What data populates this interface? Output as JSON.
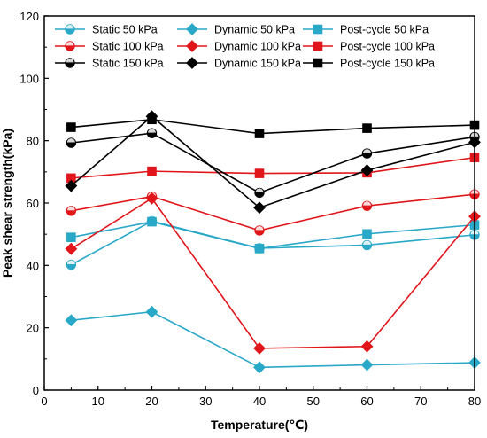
{
  "chart_data": {
    "type": "line",
    "title": "",
    "xlabel": "Temperature(℃)",
    "ylabel": "Peak shear strength(kPa)",
    "xlim": [
      0,
      80
    ],
    "ylim": [
      0,
      120
    ],
    "xticks": [
      0,
      10,
      20,
      30,
      40,
      50,
      60,
      70,
      80
    ],
    "yticks": [
      0,
      20,
      40,
      60,
      80,
      100,
      120
    ],
    "grid": false,
    "legend_position": "top",
    "legend_columns": 3,
    "x": [
      5,
      20,
      40,
      60,
      80
    ],
    "series": [
      {
        "name": "Static 50 kPa",
        "color": "#29a8c8",
        "marker": "circle",
        "values": [
          40.2,
          54.2,
          45.5,
          46.5,
          49.8
        ]
      },
      {
        "name": "Dynamic 50 kPa",
        "color": "#29a8c8",
        "marker": "diamond",
        "values": [
          22.4,
          25.1,
          7.3,
          8.1,
          8.8
        ]
      },
      {
        "name": "Post-cycle 50 kPa",
        "color": "#29a8c8",
        "marker": "square",
        "values": [
          49.0,
          54.0,
          45.4,
          50.1,
          53.0
        ]
      },
      {
        "name": "Static 100 kPa",
        "color": "#e0161b",
        "marker": "circle",
        "values": [
          57.5,
          62.1,
          51.2,
          59.1,
          62.8
        ]
      },
      {
        "name": "Dynamic 100 kPa",
        "color": "#e0161b",
        "marker": "diamond",
        "values": [
          45.3,
          61.5,
          13.4,
          14.0,
          55.7
        ]
      },
      {
        "name": "Post-cycle 100 kPa",
        "color": "#e0161b",
        "marker": "square",
        "values": [
          68.0,
          70.2,
          69.5,
          69.7,
          74.6
        ]
      },
      {
        "name": "Static 150 kPa",
        "color": "#000000",
        "marker": "circle",
        "values": [
          79.3,
          82.4,
          63.3,
          75.9,
          81.2
        ]
      },
      {
        "name": "Dynamic 150 kPa",
        "color": "#000000",
        "marker": "diamond",
        "values": [
          65.5,
          87.8,
          58.5,
          70.5,
          79.5
        ]
      },
      {
        "name": "Post-cycle 150 kPa",
        "color": "#000000",
        "marker": "square",
        "values": [
          84.3,
          86.8,
          82.3,
          84.0,
          85.0
        ]
      }
    ]
  }
}
